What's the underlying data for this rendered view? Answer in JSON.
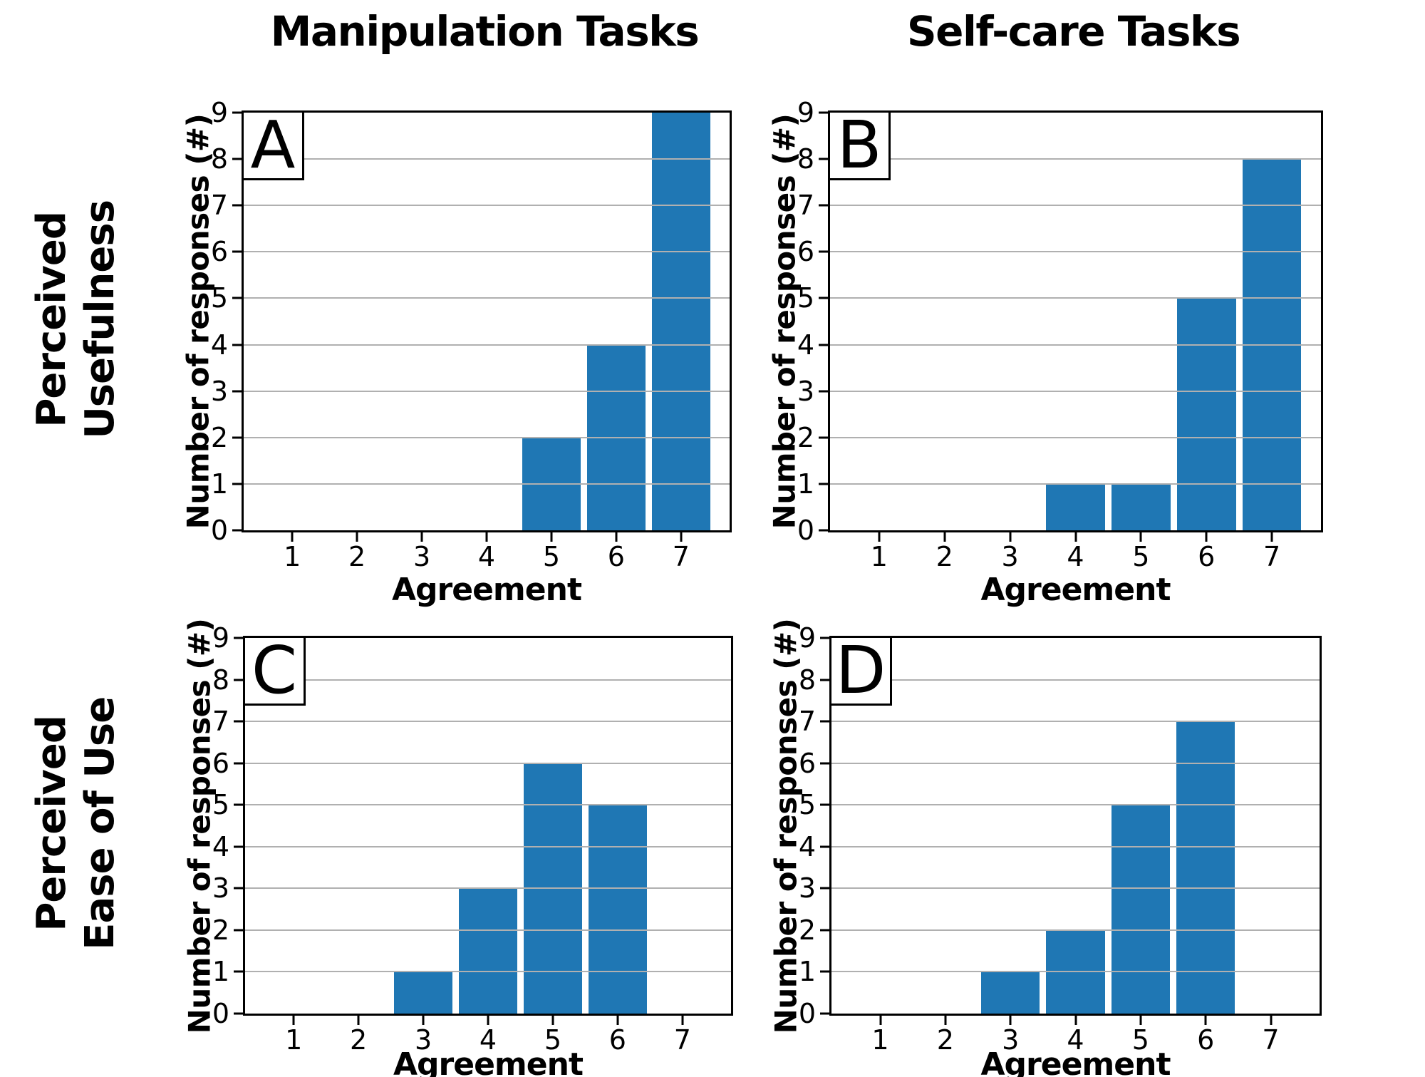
{
  "column_titles": [
    {
      "label": "Manipulation Tasks"
    },
    {
      "label": "Self-care Tasks"
    }
  ],
  "row_labels": [
    {
      "lines": [
        "Perceived",
        "Usefulness"
      ]
    },
    {
      "lines": [
        "Perceived",
        "Ease of Use"
      ]
    }
  ],
  "axis": {
    "xlabel": "Agreement",
    "ylabel": "Number of responses (#)",
    "xticks": [
      1,
      2,
      3,
      4,
      5,
      6,
      7
    ],
    "yticks": [
      0,
      1,
      2,
      3,
      4,
      5,
      6,
      7,
      8,
      9
    ],
    "xlim": [
      0.25,
      7.75
    ],
    "ylim": [
      0,
      9
    ],
    "bar_width": 0.9,
    "grid": "horizontal-gridlines-over-bars",
    "legend": "none"
  },
  "colors": {
    "bar": "#1f77b4",
    "grid": "#b0b0b0",
    "spine": "#000000",
    "text": "#000000",
    "background": "#ffffff"
  },
  "chart_data": [
    {
      "panel": "A",
      "type": "bar",
      "column": "Manipulation Tasks",
      "row": "Perceived Usefulness",
      "title": "",
      "xlabel": "Agreement",
      "ylabel": "Number of responses (#)",
      "categories": [
        1,
        2,
        3,
        4,
        5,
        6,
        7
      ],
      "values": [
        0,
        0,
        0,
        0,
        2,
        4,
        9
      ],
      "ylim": [
        0,
        9
      ]
    },
    {
      "panel": "B",
      "type": "bar",
      "column": "Self-care Tasks",
      "row": "Perceived Usefulness",
      "title": "",
      "xlabel": "Agreement",
      "ylabel": "Number of responses (#)",
      "categories": [
        1,
        2,
        3,
        4,
        5,
        6,
        7
      ],
      "values": [
        0,
        0,
        0,
        1,
        1,
        5,
        8
      ],
      "ylim": [
        0,
        9
      ]
    },
    {
      "panel": "C",
      "type": "bar",
      "column": "Manipulation Tasks",
      "row": "Perceived Ease of Use",
      "title": "",
      "xlabel": "Agreement",
      "ylabel": "Number of responses (#)",
      "categories": [
        1,
        2,
        3,
        4,
        5,
        6,
        7
      ],
      "values": [
        0,
        0,
        1,
        3,
        6,
        5,
        0
      ],
      "ylim": [
        0,
        9
      ]
    },
    {
      "panel": "D",
      "type": "bar",
      "column": "Self-care Tasks",
      "row": "Perceived Ease of Use",
      "title": "",
      "xlabel": "Agreement",
      "ylabel": "Number of responses (#)",
      "categories": [
        1,
        2,
        3,
        4,
        5,
        6,
        7
      ],
      "values": [
        0,
        0,
        1,
        2,
        5,
        7,
        0
      ],
      "ylim": [
        0,
        9
      ]
    }
  ]
}
